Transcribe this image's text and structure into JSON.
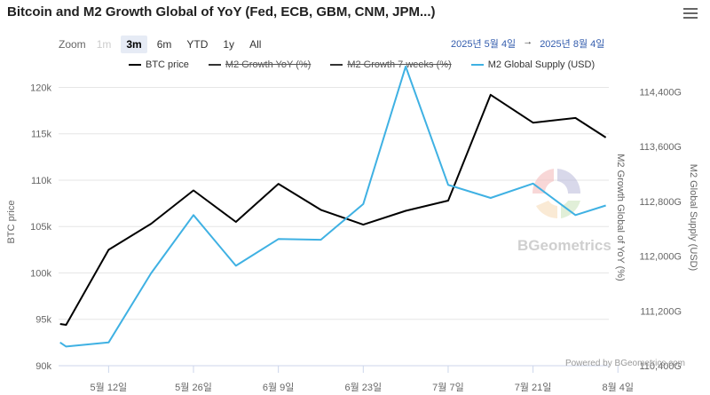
{
  "title": "Bitcoin and M2 Growth Global of YoY (Fed, ECB, GBM, CNM, JPM...)",
  "menu_icon": "hamburger-menu-icon",
  "zoom": {
    "label": "Zoom",
    "buttons": [
      {
        "label": "1m",
        "state": "disabled"
      },
      {
        "label": "3m",
        "state": "active"
      },
      {
        "label": "6m",
        "state": "normal"
      },
      {
        "label": "YTD",
        "state": "normal"
      },
      {
        "label": "1y",
        "state": "normal"
      },
      {
        "label": "All",
        "state": "normal"
      }
    ]
  },
  "date_range": {
    "from": "2025년 5월 4일",
    "arrow": "→",
    "to": "2025년 8월 4일"
  },
  "watermark": "BGeometrics",
  "credits": "Powered by BGeometrics.com",
  "colors": {
    "btc": "#000000",
    "m2": "#3fb1e3",
    "grid": "#e6e6e6",
    "axis_text": "#666666"
  },
  "chart_data": {
    "type": "line",
    "x_labels": [
      "5월 12일",
      "5월 26일",
      "6월 9일",
      "6월 23일",
      "7월 7일",
      "7월 21일",
      "8월 4일"
    ],
    "x_range": [
      -1.25,
      89.5
    ],
    "legend": [
      {
        "name": "BTC price",
        "visible": true,
        "color": "#000000"
      },
      {
        "name": "M2 Growth YoY (%)",
        "visible": false,
        "color": "#333333"
      },
      {
        "name": "M2 Growth 7 weeks (%)",
        "visible": false,
        "color": "#333333"
      },
      {
        "name": "M2 Global Supply (USD)",
        "visible": true,
        "color": "#3fb1e3"
      }
    ],
    "axes": {
      "btc": {
        "label": "BTC price",
        "ticks": [
          "90k",
          "95k",
          "100k",
          "105k",
          "110k",
          "115k",
          "120k"
        ],
        "tick_values": [
          90000,
          95000,
          100000,
          105000,
          110000,
          115000,
          120000
        ],
        "range": [
          90000,
          121000
        ]
      },
      "m2_growth": {
        "label": "M2 Growth Global of YoY (%)"
      },
      "m2_supply": {
        "label": "M2 Global Supply (USD)",
        "ticks": [
          "110,400G",
          "111,200G",
          "112,000G",
          "112,800G",
          "113,600G",
          "114,400G"
        ],
        "tick_values": [
          110400,
          111200,
          112000,
          112800,
          113600,
          114400
        ],
        "range": [
          110400,
          114600
        ]
      }
    },
    "series": [
      {
        "name": "BTC price",
        "axis": "btc",
        "x": [
          -1,
          0,
          7,
          14,
          21,
          28,
          35,
          42,
          49,
          56,
          63,
          70,
          77,
          84,
          89
        ],
        "y": [
          94500,
          94400,
          102500,
          105300,
          108900,
          105500,
          109600,
          106800,
          105200,
          106700,
          107800,
          119200,
          116200,
          116700,
          114600
        ]
      },
      {
        "name": "M2 Global Supply (USD)",
        "axis": "m2_supply",
        "x": [
          -1,
          0,
          7,
          14,
          21,
          28,
          35,
          42,
          49,
          56,
          63,
          70,
          77,
          84,
          89
        ],
        "y": [
          110740,
          110680,
          110740,
          111750,
          112600,
          111860,
          112250,
          112240,
          112760,
          114770,
          113040,
          112850,
          113060,
          112600,
          112740
        ]
      }
    ]
  }
}
